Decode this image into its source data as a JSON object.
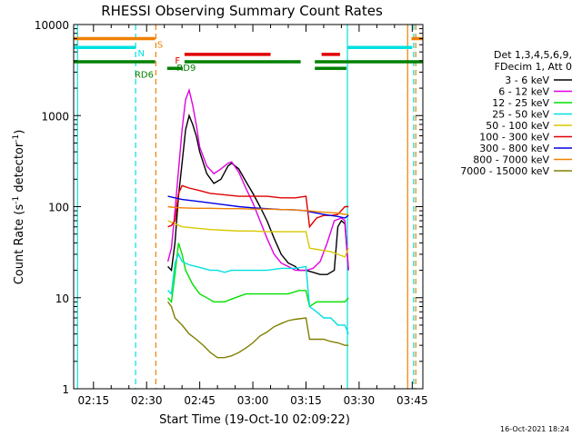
{
  "chart_data": {
    "type": "line",
    "title": "RHESSI Observing Summary Count Rates",
    "xlabel": "Start Time (19-Oct-10 02:09:22)",
    "ylabel_main": "Count Rate (s",
    "ylabel_sup1": "-1",
    "ylabel_mid": " detector",
    "ylabel_sup2": "-1",
    "ylabel_end": ")",
    "timestamp": "16-Oct-2021 18:24",
    "y_scale": "log",
    "ylim": [
      1,
      10000
    ],
    "xlim": [
      129.4,
      228
    ],
    "x_unit": "minutes after 00:00 UT",
    "x_ticks": [
      {
        "value": 135,
        "label": "02:15"
      },
      {
        "value": 150,
        "label": "02:30"
      },
      {
        "value": 165,
        "label": "02:45"
      },
      {
        "value": 180,
        "label": "03:00"
      },
      {
        "value": 195,
        "label": "03:15"
      },
      {
        "value": 210,
        "label": "03:30"
      },
      {
        "value": 225,
        "label": "03:45"
      }
    ],
    "y_ticks": [
      {
        "value": 1,
        "label": "1"
      },
      {
        "value": 10,
        "label": "10"
      },
      {
        "value": 100,
        "label": "100"
      },
      {
        "value": 1000,
        "label": "1000"
      },
      {
        "value": 10000,
        "label": "10000"
      }
    ],
    "legend": {
      "header1": "Det 1,3,4,5,6,9,",
      "header2": "FDecim 1, Att 0",
      "placement": "right"
    },
    "series": [
      {
        "name": "3 - 6 keV",
        "color": "#000000",
        "points": [
          [
            156,
            22
          ],
          [
            157,
            20
          ],
          [
            158,
            40
          ],
          [
            159,
            130
          ],
          [
            160,
            300
          ],
          [
            161,
            700
          ],
          [
            162,
            1000
          ],
          [
            163,
            800
          ],
          [
            164,
            600
          ],
          [
            165,
            400
          ],
          [
            167,
            230
          ],
          [
            169,
            180
          ],
          [
            171,
            200
          ],
          [
            173,
            280
          ],
          [
            174,
            300
          ],
          [
            176,
            260
          ],
          [
            178,
            190
          ],
          [
            180,
            140
          ],
          [
            182,
            100
          ],
          [
            184,
            70
          ],
          [
            186,
            45
          ],
          [
            188,
            30
          ],
          [
            190,
            24
          ],
          [
            192,
            22
          ],
          [
            193,
            20
          ],
          [
            195,
            20
          ],
          [
            197,
            19
          ],
          [
            199,
            18
          ],
          [
            201,
            18
          ],
          [
            203,
            20
          ],
          [
            204,
            60
          ],
          [
            205,
            70
          ],
          [
            206,
            65
          ],
          [
            207,
            20
          ]
        ]
      },
      {
        "name": "6 - 12 keV",
        "color": "#e000e0",
        "points": [
          [
            156,
            25
          ],
          [
            157,
            35
          ],
          [
            158,
            90
          ],
          [
            159,
            250
          ],
          [
            160,
            700
          ],
          [
            161,
            1500
          ],
          [
            162,
            1900
          ],
          [
            163,
            1300
          ],
          [
            164,
            800
          ],
          [
            165,
            450
          ],
          [
            167,
            280
          ],
          [
            169,
            230
          ],
          [
            171,
            260
          ],
          [
            173,
            300
          ],
          [
            174,
            310
          ],
          [
            176,
            240
          ],
          [
            178,
            160
          ],
          [
            180,
            110
          ],
          [
            182,
            70
          ],
          [
            184,
            45
          ],
          [
            186,
            30
          ],
          [
            188,
            24
          ],
          [
            190,
            22
          ],
          [
            192,
            20
          ],
          [
            195,
            20
          ],
          [
            197,
            21
          ],
          [
            199,
            25
          ],
          [
            201,
            40
          ],
          [
            203,
            70
          ],
          [
            205,
            75
          ],
          [
            206,
            70
          ],
          [
            207,
            20
          ]
        ]
      },
      {
        "name": "12 - 25 keV",
        "color": "#00e000",
        "points": [
          [
            156,
            10
          ],
          [
            157,
            9
          ],
          [
            158,
            18
          ],
          [
            159,
            40
          ],
          [
            160,
            30
          ],
          [
            161,
            20
          ],
          [
            163,
            14
          ],
          [
            165,
            11
          ],
          [
            167,
            10
          ],
          [
            169,
            9
          ],
          [
            172,
            9
          ],
          [
            175,
            10
          ],
          [
            178,
            11
          ],
          [
            181,
            11
          ],
          [
            184,
            11
          ],
          [
            187,
            11
          ],
          [
            190,
            11
          ],
          [
            193,
            12
          ],
          [
            195,
            12
          ],
          [
            196,
            8
          ],
          [
            198,
            9
          ],
          [
            200,
            9
          ],
          [
            202,
            9
          ],
          [
            204,
            9
          ],
          [
            206,
            9
          ],
          [
            207,
            10
          ]
        ]
      },
      {
        "name": "25 - 50 keV",
        "color": "#00e0e0",
        "points": [
          [
            156,
            12
          ],
          [
            157,
            11
          ],
          [
            158,
            24
          ],
          [
            159,
            30
          ],
          [
            160,
            25
          ],
          [
            162,
            23
          ],
          [
            164,
            22
          ],
          [
            166,
            21
          ],
          [
            168,
            20
          ],
          [
            170,
            20
          ],
          [
            172,
            19
          ],
          [
            174,
            20
          ],
          [
            176,
            20
          ],
          [
            180,
            20
          ],
          [
            184,
            20
          ],
          [
            188,
            21
          ],
          [
            192,
            21
          ],
          [
            195,
            22
          ],
          [
            196,
            8
          ],
          [
            198,
            7
          ],
          [
            200,
            6
          ],
          [
            202,
            6
          ],
          [
            204,
            5
          ],
          [
            206,
            5
          ],
          [
            207,
            4
          ]
        ]
      },
      {
        "name": "50 - 100 keV",
        "color": "#d8c800",
        "points": [
          [
            156,
            70
          ],
          [
            158,
            65
          ],
          [
            160,
            60
          ],
          [
            164,
            58
          ],
          [
            168,
            56
          ],
          [
            172,
            55
          ],
          [
            176,
            54
          ],
          [
            180,
            54
          ],
          [
            184,
            53
          ],
          [
            188,
            53
          ],
          [
            192,
            53
          ],
          [
            195,
            53
          ],
          [
            196,
            35
          ],
          [
            198,
            34
          ],
          [
            200,
            33
          ],
          [
            202,
            32
          ],
          [
            204,
            30
          ],
          [
            206,
            28
          ],
          [
            207,
            35
          ]
        ]
      },
      {
        "name": "100 - 300 keV",
        "color": "#e00000",
        "points": [
          [
            156,
            60
          ],
          [
            157,
            62
          ],
          [
            158,
            70
          ],
          [
            159,
            140
          ],
          [
            160,
            170
          ],
          [
            162,
            160
          ],
          [
            165,
            150
          ],
          [
            168,
            140
          ],
          [
            172,
            135
          ],
          [
            176,
            130
          ],
          [
            180,
            130
          ],
          [
            184,
            130
          ],
          [
            188,
            125
          ],
          [
            192,
            125
          ],
          [
            195,
            130
          ],
          [
            196,
            60
          ],
          [
            198,
            75
          ],
          [
            200,
            80
          ],
          [
            202,
            80
          ],
          [
            204,
            82
          ],
          [
            206,
            100
          ],
          [
            207,
            100
          ]
        ]
      },
      {
        "name": "300 - 800 keV",
        "color": "#0000e0",
        "points": [
          [
            156,
            130
          ],
          [
            158,
            125
          ],
          [
            160,
            120
          ],
          [
            164,
            115
          ],
          [
            168,
            110
          ],
          [
            172,
            105
          ],
          [
            176,
            100
          ],
          [
            180,
            97
          ],
          [
            184,
            95
          ],
          [
            188,
            93
          ],
          [
            192,
            92
          ],
          [
            195,
            90
          ],
          [
            196,
            88
          ],
          [
            198,
            85
          ],
          [
            200,
            82
          ],
          [
            202,
            80
          ],
          [
            204,
            78
          ],
          [
            206,
            75
          ],
          [
            207,
            80
          ]
        ]
      },
      {
        "name": "800 - 7000 keV",
        "color": "#f08000",
        "points": [
          [
            156,
            100
          ],
          [
            158,
            98
          ],
          [
            160,
            97
          ],
          [
            164,
            96
          ],
          [
            168,
            96
          ],
          [
            172,
            95
          ],
          [
            176,
            95
          ],
          [
            180,
            94
          ],
          [
            184,
            94
          ],
          [
            188,
            93
          ],
          [
            192,
            92
          ],
          [
            195,
            90
          ],
          [
            196,
            90
          ],
          [
            198,
            88
          ],
          [
            200,
            87
          ],
          [
            202,
            86
          ],
          [
            204,
            85
          ],
          [
            206,
            82
          ],
          [
            207,
            82
          ]
        ]
      },
      {
        "name": "7000 - 15000 keV",
        "color": "#808000",
        "points": [
          [
            156,
            9
          ],
          [
            157,
            8
          ],
          [
            158,
            6
          ],
          [
            160,
            5
          ],
          [
            162,
            4
          ],
          [
            164,
            3.5
          ],
          [
            166,
            3
          ],
          [
            168,
            2.5
          ],
          [
            170,
            2.2
          ],
          [
            172,
            2.2
          ],
          [
            174,
            2.3
          ],
          [
            176,
            2.5
          ],
          [
            178,
            2.8
          ],
          [
            180,
            3.2
          ],
          [
            182,
            3.8
          ],
          [
            184,
            4.2
          ],
          [
            186,
            4.8
          ],
          [
            188,
            5.2
          ],
          [
            190,
            5.6
          ],
          [
            192,
            5.8
          ],
          [
            195,
            6
          ],
          [
            196,
            3.5
          ],
          [
            198,
            3.5
          ],
          [
            200,
            3.5
          ],
          [
            202,
            3.3
          ],
          [
            204,
            3.2
          ],
          [
            206,
            3
          ],
          [
            207,
            3
          ]
        ]
      }
    ],
    "attenuator_bars": [
      {
        "label": "S",
        "color": "#f08000",
        "y": 7000,
        "segments": [
          [
            129.4,
            152.4
          ],
          [
            224.8,
            228
          ]
        ],
        "label_x": 153
      }
    ],
    "flag_bars": [
      {
        "label": "N",
        "color": "#00e0e0",
        "y": 5600,
        "segments": [
          [
            129.4,
            146.9
          ],
          [
            206.7,
            225
          ]
        ],
        "label_x": 147.5
      },
      {
        "label": "F",
        "color": "#e00000",
        "y": 4700,
        "segments": [
          [
            160.7,
            185
          ],
          [
            199.4,
            204.6
          ]
        ],
        "label_x": 158
      },
      {
        "label": "RD9",
        "color": "#008000",
        "y": 3900,
        "segments": [
          [
            129.4,
            152.4
          ],
          [
            160.7,
            193.5
          ],
          [
            197.5,
            228
          ]
        ],
        "label_x": 158.5
      },
      {
        "label": "RD6",
        "color": "#008000",
        "y": 3300,
        "segments": [
          [
            155.8,
            160.2
          ],
          [
            197.5,
            206.4
          ]
        ],
        "label_x": 146.6
      }
    ],
    "vertical_lines": [
      {
        "x": 130.5,
        "color": "#00e0e0",
        "style": "solid"
      },
      {
        "x": 146.9,
        "color": "#00e0e0",
        "style": "dashed"
      },
      {
        "x": 152.6,
        "color": "#f08000",
        "style": "dashed"
      },
      {
        "x": 206.7,
        "color": "#00e0e0",
        "style": "solid"
      },
      {
        "x": 223.7,
        "color": "#f08000",
        "style": "solid"
      },
      {
        "x": 225.4,
        "color": "#00e0e0",
        "style": "dashed"
      },
      {
        "x": 226,
        "color": "#f08000",
        "style": "dashed"
      }
    ]
  }
}
